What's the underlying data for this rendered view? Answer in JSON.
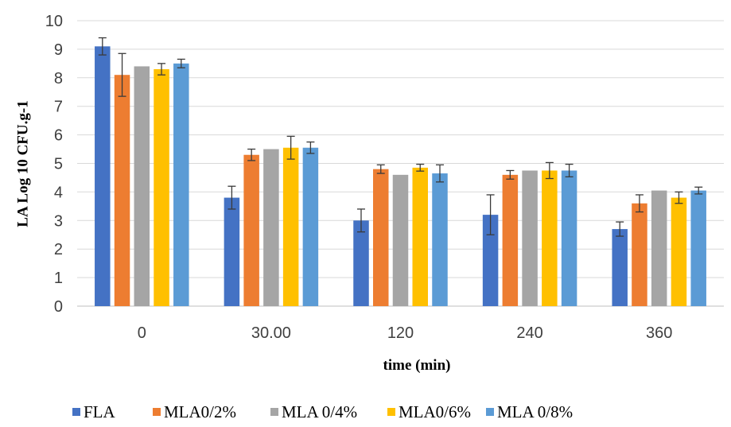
{
  "chart_data": {
    "type": "bar",
    "title": "",
    "xlabel": "time (min)",
    "ylabel": "LA Log 10 CFU.g-1",
    "ylim": [
      0,
      10
    ],
    "yticks": [
      0,
      1,
      2,
      3,
      4,
      5,
      6,
      7,
      8,
      9,
      10
    ],
    "grid": true,
    "legend_position": "bottom",
    "categories": [
      "0",
      "30.00",
      "120",
      "240",
      "360"
    ],
    "series": [
      {
        "name": "FLA",
        "color": "#4472c4",
        "values": [
          9.1,
          3.8,
          3.0,
          3.2,
          2.7
        ],
        "errors": [
          0.3,
          0.4,
          0.4,
          0.7,
          0.25
        ]
      },
      {
        "name": "MLA0/2%",
        "color": "#ed7d31",
        "values": [
          8.1,
          5.3,
          4.8,
          4.6,
          3.6
        ],
        "errors": [
          0.75,
          0.2,
          0.15,
          0.15,
          0.3
        ]
      },
      {
        "name": "MLA 0/4%",
        "color": "#a5a5a5",
        "values": [
          8.4,
          5.5,
          4.6,
          4.75,
          4.05
        ],
        "errors": [
          0,
          0,
          0,
          0,
          0
        ]
      },
      {
        "name": "MLA0/6%",
        "color": "#ffc000",
        "values": [
          8.3,
          5.55,
          4.85,
          4.75,
          3.8
        ],
        "errors": [
          0.2,
          0.4,
          0.12,
          0.28,
          0.2
        ]
      },
      {
        "name": "MLA 0/8%",
        "color": "#5b9bd5",
        "values": [
          8.5,
          5.55,
          4.65,
          4.75,
          4.05
        ],
        "errors": [
          0.15,
          0.2,
          0.3,
          0.22,
          0.12
        ]
      }
    ]
  }
}
